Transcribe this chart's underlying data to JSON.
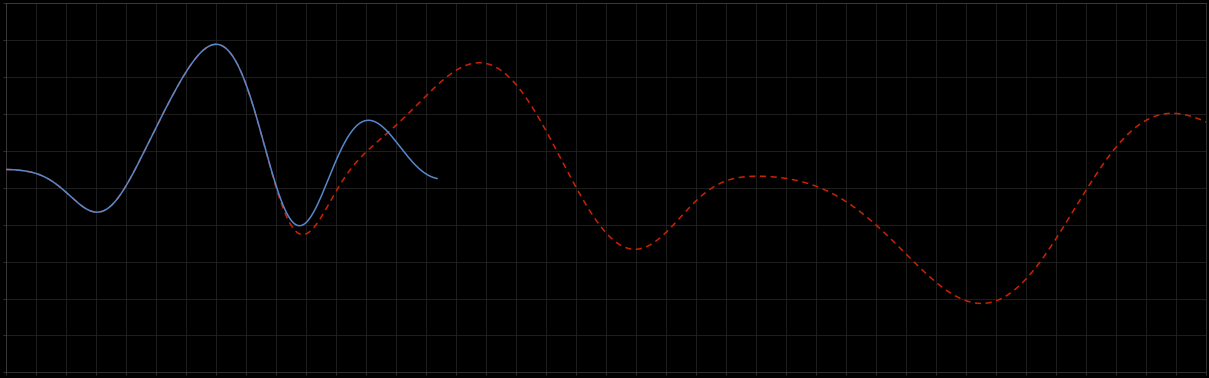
{
  "background_color": "#000000",
  "plot_bg_color": "#000000",
  "grid_color": "#2a2a2a",
  "axis_color": "#444444",
  "tick_color": "#444444",
  "line1_color": "#5588CC",
  "line2_color": "#CC2200",
  "line_width": 1.1,
  "figsize": [
    12.09,
    3.78
  ],
  "dpi": 100,
  "xlim": [
    0,
    100
  ],
  "ylim": [
    0,
    10
  ],
  "grid_linewidth": 0.5,
  "x_major_spacing": 2.5,
  "y_major_spacing": 1.0,
  "blue_end_x": 36,
  "red_start_x": 0
}
